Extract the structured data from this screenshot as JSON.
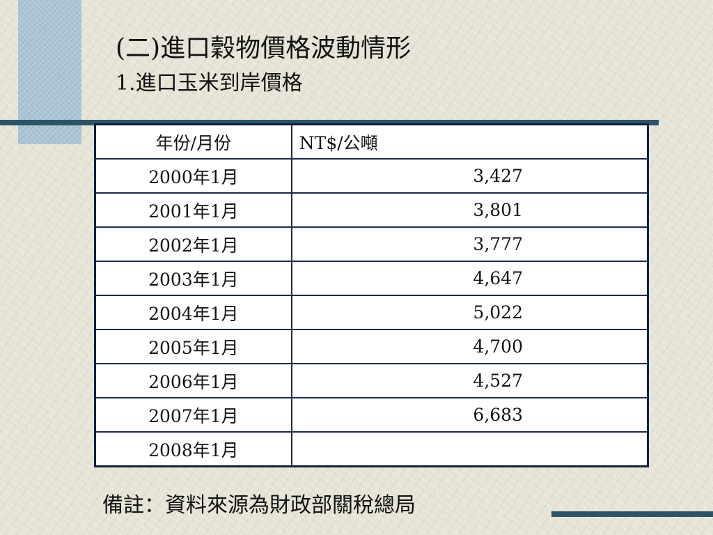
{
  "title": "(二)進口穀物價格波動情形",
  "subtitle": "1.進口玉米到岸價格",
  "table": {
    "headers": [
      "年份/月份",
      "NT$/公噸"
    ],
    "rows": [
      {
        "period": "2000年1月",
        "price": "3,427"
      },
      {
        "period": "2001年1月",
        "price": "3,801"
      },
      {
        "period": "2002年1月",
        "price": "3,777"
      },
      {
        "period": "2003年1月",
        "price": "4,647"
      },
      {
        "period": "2004年1月",
        "price": "5,022"
      },
      {
        "period": "2005年1月",
        "price": "4,700"
      },
      {
        "period": "2006年1月",
        "price": "4,527"
      },
      {
        "period": "2007年1月",
        "price": "6,683"
      },
      {
        "period": "2008年1月",
        "price": ""
      }
    ]
  },
  "footnote": "備註：資料來源為財政部關稅總局",
  "colors": {
    "background": "#e6e4d6",
    "accent_square": "#a9c4d3",
    "accent_line": "#2c5466",
    "table_border": "#0f1f3d"
  }
}
